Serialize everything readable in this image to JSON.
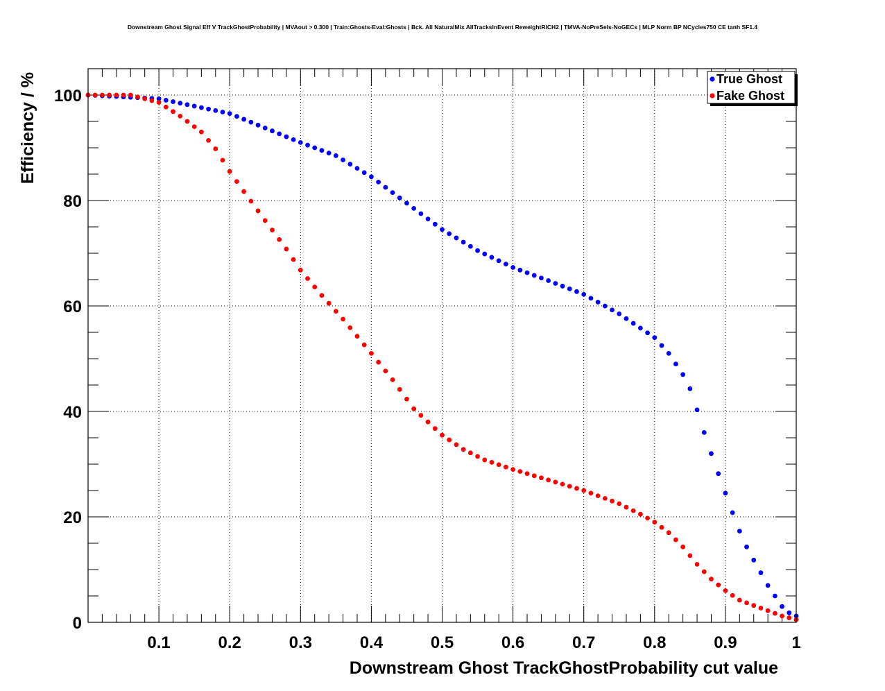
{
  "chart_data": {
    "type": "scatter",
    "title": "Downstream Ghost Signal Eff V TrackGhostProbability | MVAout > 0.300 | Train:Ghosts-Eval:Ghosts | Bck. All NaturalMix AllTracksInEvent ReweightRICH2 | TMVA-NoPreSels-NoGECs | MLP Norm BP NCycles750 CE tanh SF1.4",
    "xlabel": "Downstream Ghost TrackGhostProbability cut value",
    "ylabel": "Efficiency / %",
    "xlim": [
      0,
      1
    ],
    "ylim": [
      0,
      105
    ],
    "x_ticks": [
      "0.1",
      "0.2",
      "0.3",
      "0.4",
      "0.5",
      "0.6",
      "0.7",
      "0.8",
      "0.9",
      "1"
    ],
    "y_ticks": [
      "0",
      "20",
      "40",
      "60",
      "80",
      "100"
    ],
    "grid": true,
    "legend_position": "top-right",
    "series": [
      {
        "name": "True Ghost",
        "color": "#0000ff",
        "points": [
          [
            0.0,
            100.0
          ],
          [
            0.1,
            99.3
          ],
          [
            0.2,
            96.5
          ],
          [
            0.3,
            91.0
          ],
          [
            0.35,
            88.5
          ],
          [
            0.4,
            84.5
          ],
          [
            0.45,
            79.5
          ],
          [
            0.5,
            74.5
          ],
          [
            0.55,
            70.5
          ],
          [
            0.6,
            67.3
          ],
          [
            0.65,
            64.8
          ],
          [
            0.7,
            62.2
          ],
          [
            0.75,
            58.5
          ],
          [
            0.8,
            54.0
          ],
          [
            0.82,
            51.0
          ],
          [
            0.84,
            47.0
          ],
          [
            0.85,
            44.3
          ],
          [
            0.86,
            40.3
          ],
          [
            0.87,
            36.0
          ],
          [
            0.88,
            32.0
          ],
          [
            0.89,
            28.2
          ],
          [
            0.9,
            24.5
          ],
          [
            0.91,
            20.8
          ],
          [
            0.92,
            17.3
          ],
          [
            0.93,
            14.3
          ],
          [
            0.94,
            11.8
          ],
          [
            0.95,
            9.4
          ],
          [
            0.96,
            7.0
          ],
          [
            0.97,
            5.0
          ],
          [
            0.98,
            3.0
          ],
          [
            0.99,
            1.8
          ],
          [
            1.0,
            1.2
          ]
        ]
      },
      {
        "name": "Fake Ghost",
        "color": "#ff0000",
        "points": [
          [
            0.0,
            100.0
          ],
          [
            0.06,
            100.0
          ],
          [
            0.1,
            98.6
          ],
          [
            0.13,
            96.0
          ],
          [
            0.16,
            93.0
          ],
          [
            0.18,
            89.8
          ],
          [
            0.2,
            85.5
          ],
          [
            0.22,
            81.7
          ],
          [
            0.25,
            76.2
          ],
          [
            0.28,
            70.8
          ],
          [
            0.3,
            66.8
          ],
          [
            0.33,
            62.0
          ],
          [
            0.36,
            57.5
          ],
          [
            0.4,
            51.0
          ],
          [
            0.43,
            46.0
          ],
          [
            0.46,
            40.5
          ],
          [
            0.5,
            35.5
          ],
          [
            0.53,
            32.8
          ],
          [
            0.56,
            30.8
          ],
          [
            0.6,
            29.0
          ],
          [
            0.65,
            27.0
          ],
          [
            0.7,
            25.0
          ],
          [
            0.75,
            22.5
          ],
          [
            0.78,
            20.5
          ],
          [
            0.8,
            19.0
          ],
          [
            0.82,
            17.0
          ],
          [
            0.84,
            14.3
          ],
          [
            0.86,
            11.0
          ],
          [
            0.88,
            8.2
          ],
          [
            0.9,
            6.0
          ],
          [
            0.92,
            4.2
          ],
          [
            0.94,
            3.2
          ],
          [
            0.96,
            2.2
          ],
          [
            0.98,
            1.2
          ],
          [
            1.0,
            0.5
          ]
        ]
      }
    ]
  }
}
